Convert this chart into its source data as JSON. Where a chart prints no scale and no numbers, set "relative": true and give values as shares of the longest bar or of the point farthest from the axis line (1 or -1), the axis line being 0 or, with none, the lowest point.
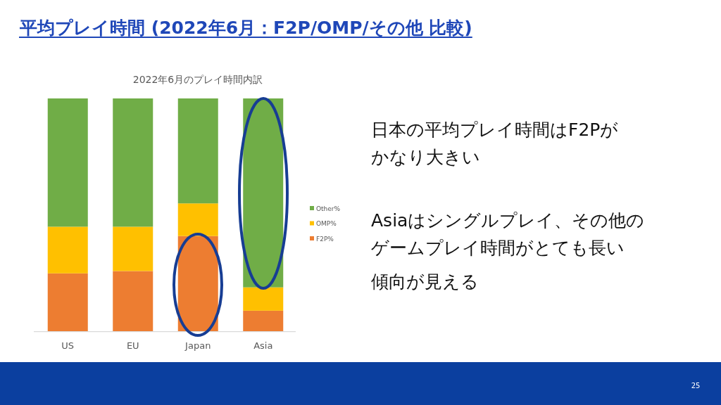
{
  "chart_data": {
    "type": "bar",
    "title": "平均プレイ時間 (2022年6月：F2P/OMP/その他 比較)",
    "subtitle": "2022年6月のプレイ時間内訳",
    "categories": [
      "US",
      "EU",
      "Japan",
      "Asia"
    ],
    "series": [
      {
        "name": "F2P%",
        "color": "#ed7d31",
        "values": [
          0.25,
          0.26,
          0.41,
          0.09
        ]
      },
      {
        "name": "OMP%",
        "color": "#ffc000",
        "values": [
          0.2,
          0.19,
          0.14,
          0.1
        ]
      },
      {
        "name": "Other%",
        "color": "#70ad47",
        "values": [
          0.55,
          0.55,
          0.45,
          0.81
        ]
      }
    ],
    "stacked": true,
    "relative": true,
    "legend": "right",
    "annotations": [
      "日本の平均プレイ時間はF2Pが",
      "かなり大きい",
      "Asiaはシングルプレイ、その他の",
      "ゲームプレイ時間がとても長い",
      "傾向が見える",
      "25"
    ]
  }
}
